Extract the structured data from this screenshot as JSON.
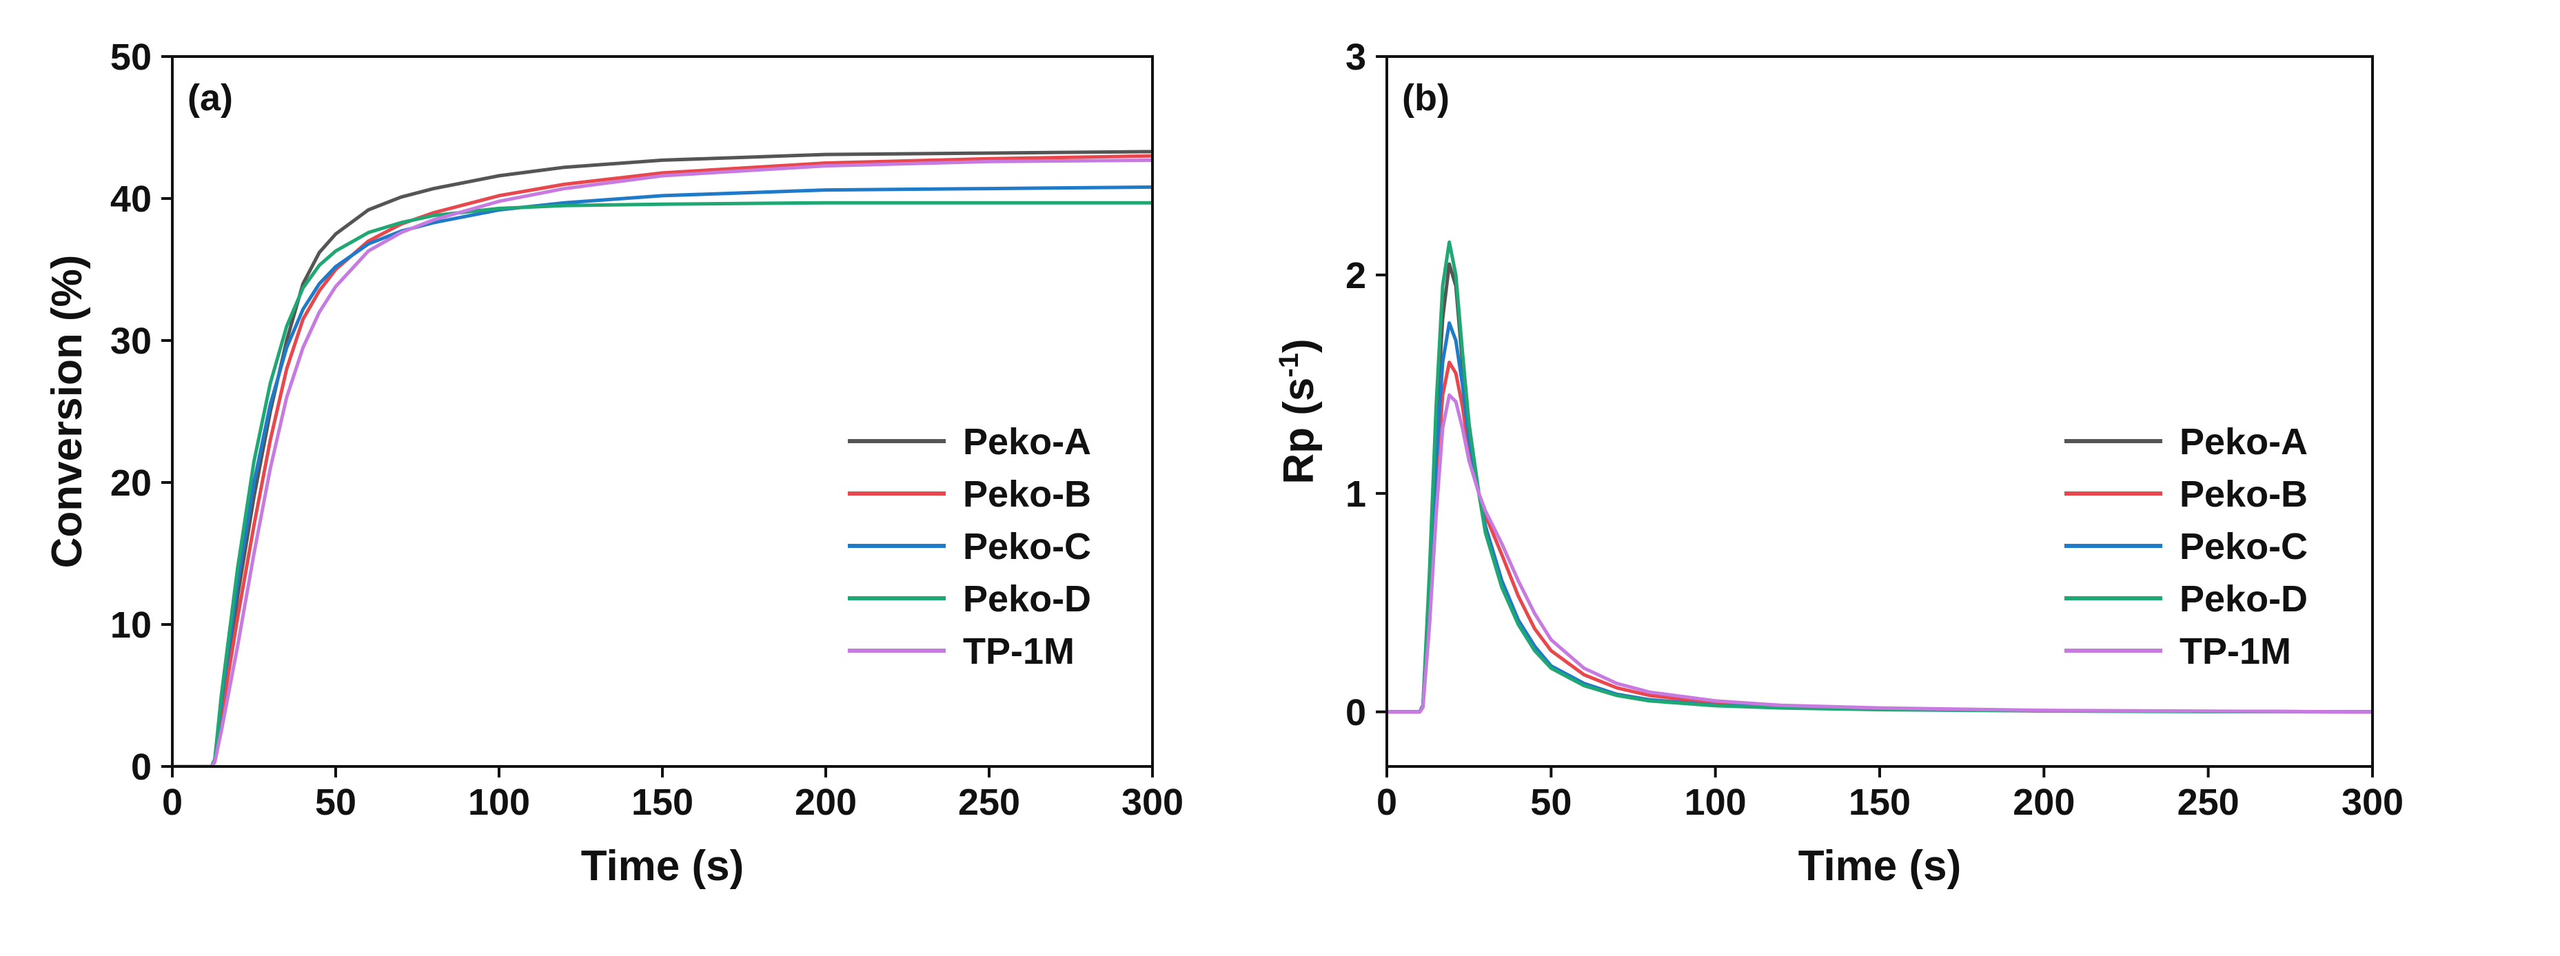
{
  "chart_data": [
    {
      "type": "line",
      "panel_label": "(a)",
      "xlabel": "Time (s)",
      "ylabel": "Conversion (%)",
      "xlim": [
        0,
        300
      ],
      "ylim": [
        0,
        50
      ],
      "xticks": [
        "0",
        "50",
        "100",
        "150",
        "200",
        "250",
        "300"
      ],
      "yticks": [
        "0",
        "10",
        "20",
        "30",
        "40",
        "50"
      ],
      "legend_position": "right",
      "series": [
        {
          "name": "Peko-A",
          "color": "#555555",
          "x": [
            0,
            12,
            13,
            15,
            20,
            25,
            30,
            35,
            40,
            45,
            50,
            60,
            70,
            80,
            100,
            120,
            150,
            200,
            250,
            300
          ],
          "y": [
            0,
            0,
            0.4,
            4,
            12,
            19,
            25,
            30,
            34,
            36.2,
            37.5,
            39.2,
            40.1,
            40.7,
            41.6,
            42.2,
            42.7,
            43.1,
            43.2,
            43.3
          ]
        },
        {
          "name": "Peko-B",
          "color": "#e8484d",
          "x": [
            0,
            12,
            13,
            15,
            20,
            25,
            30,
            35,
            40,
            45,
            50,
            60,
            70,
            80,
            100,
            120,
            150,
            200,
            250,
            300
          ],
          "y": [
            0,
            0,
            0.4,
            3.5,
            10.5,
            17,
            23,
            28,
            31.5,
            33.5,
            35,
            37,
            38.2,
            39,
            40.2,
            41,
            41.8,
            42.5,
            42.8,
            43
          ]
        },
        {
          "name": "Peko-C",
          "color": "#1f7ac9",
          "x": [
            0,
            12,
            13,
            15,
            20,
            25,
            30,
            35,
            40,
            45,
            50,
            60,
            70,
            80,
            100,
            120,
            150,
            200,
            250,
            300
          ],
          "y": [
            0,
            0,
            0.5,
            4.5,
            13,
            20,
            25.5,
            29.5,
            32.2,
            34,
            35.2,
            36.8,
            37.7,
            38.3,
            39.2,
            39.7,
            40.2,
            40.6,
            40.7,
            40.8
          ]
        },
        {
          "name": "Peko-D",
          "color": "#1fa774",
          "x": [
            0,
            12,
            13,
            15,
            20,
            25,
            30,
            35,
            40,
            45,
            50,
            60,
            70,
            80,
            100,
            120,
            150,
            200,
            250,
            300
          ],
          "y": [
            0,
            0,
            0.5,
            5,
            14,
            21.5,
            27,
            31,
            33.7,
            35.3,
            36.3,
            37.6,
            38.3,
            38.8,
            39.3,
            39.5,
            39.6,
            39.7,
            39.7,
            39.7
          ]
        },
        {
          "name": "TP-1M",
          "color": "#c77be0",
          "x": [
            0,
            12,
            13,
            15,
            20,
            25,
            30,
            35,
            40,
            45,
            50,
            60,
            70,
            80,
            100,
            120,
            150,
            200,
            250,
            300
          ],
          "y": [
            0,
            0,
            0.3,
            2.5,
            8.5,
            15,
            21,
            26,
            29.5,
            32,
            33.8,
            36.3,
            37.6,
            38.5,
            39.8,
            40.7,
            41.6,
            42.3,
            42.6,
            42.7
          ]
        }
      ]
    },
    {
      "type": "line",
      "panel_label": "(b)",
      "xlabel": "Time (s)",
      "ylabel": "Rp (s",
      "ylabel_superscript": "-1",
      "ylabel_suffix": ")",
      "xlim": [
        0,
        300
      ],
      "ylim": [
        -0.25,
        3
      ],
      "xticks": [
        "0",
        "50",
        "100",
        "150",
        "200",
        "250",
        "300"
      ],
      "yticks": [
        "0",
        "1",
        "2",
        "3"
      ],
      "legend_position": "right",
      "series": [
        {
          "name": "Peko-A",
          "color": "#555555",
          "x": [
            0,
            10,
            11,
            13,
            15,
            17,
            19,
            21,
            23,
            25,
            28,
            30,
            35,
            40,
            45,
            50,
            60,
            70,
            80,
            100,
            120,
            150,
            200,
            250,
            300
          ],
          "y": [
            0,
            0,
            0.03,
            0.6,
            1.3,
            1.8,
            2.05,
            1.95,
            1.6,
            1.3,
            1.0,
            0.85,
            0.6,
            0.42,
            0.3,
            0.21,
            0.13,
            0.08,
            0.055,
            0.03,
            0.02,
            0.012,
            0.005,
            0.002,
            0
          ]
        },
        {
          "name": "Peko-B",
          "color": "#e8484d",
          "x": [
            0,
            10,
            11,
            13,
            15,
            17,
            19,
            21,
            23,
            25,
            28,
            30,
            35,
            40,
            45,
            50,
            60,
            70,
            80,
            100,
            120,
            150,
            200,
            250,
            300
          ],
          "y": [
            0,
            0,
            0.03,
            0.5,
            1.05,
            1.45,
            1.6,
            1.55,
            1.4,
            1.2,
            1.0,
            0.9,
            0.72,
            0.53,
            0.38,
            0.28,
            0.17,
            0.11,
            0.075,
            0.04,
            0.025,
            0.015,
            0.006,
            0.002,
            0
          ]
        },
        {
          "name": "Peko-C",
          "color": "#1f7ac9",
          "x": [
            0,
            10,
            11,
            13,
            15,
            17,
            19,
            21,
            23,
            25,
            28,
            30,
            35,
            40,
            45,
            50,
            60,
            70,
            80,
            100,
            120,
            150,
            200,
            250,
            300
          ],
          "y": [
            0,
            0,
            0.03,
            0.55,
            1.15,
            1.6,
            1.78,
            1.7,
            1.5,
            1.25,
            1.0,
            0.85,
            0.6,
            0.42,
            0.3,
            0.21,
            0.13,
            0.08,
            0.055,
            0.03,
            0.02,
            0.012,
            0.005,
            0.002,
            0
          ]
        },
        {
          "name": "Peko-D",
          "color": "#1fa774",
          "x": [
            0,
            10,
            11,
            13,
            15,
            17,
            19,
            21,
            23,
            25,
            28,
            30,
            35,
            40,
            45,
            50,
            60,
            70,
            80,
            100,
            120,
            150,
            200,
            250,
            300
          ],
          "y": [
            0,
            0,
            0.03,
            0.65,
            1.4,
            1.95,
            2.15,
            2.0,
            1.65,
            1.32,
            1.0,
            0.82,
            0.57,
            0.4,
            0.28,
            0.2,
            0.12,
            0.075,
            0.05,
            0.028,
            0.018,
            0.01,
            0.004,
            0.001,
            0
          ]
        },
        {
          "name": "TP-1M",
          "color": "#c77be0",
          "x": [
            0,
            10,
            11,
            13,
            15,
            17,
            19,
            21,
            23,
            25,
            28,
            30,
            35,
            40,
            45,
            50,
            60,
            70,
            80,
            100,
            120,
            150,
            200,
            250,
            300
          ],
          "y": [
            0,
            0,
            0.02,
            0.4,
            0.9,
            1.3,
            1.45,
            1.42,
            1.3,
            1.15,
            1.0,
            0.92,
            0.77,
            0.6,
            0.45,
            0.33,
            0.2,
            0.13,
            0.09,
            0.05,
            0.03,
            0.018,
            0.007,
            0.003,
            0
          ]
        }
      ]
    }
  ]
}
